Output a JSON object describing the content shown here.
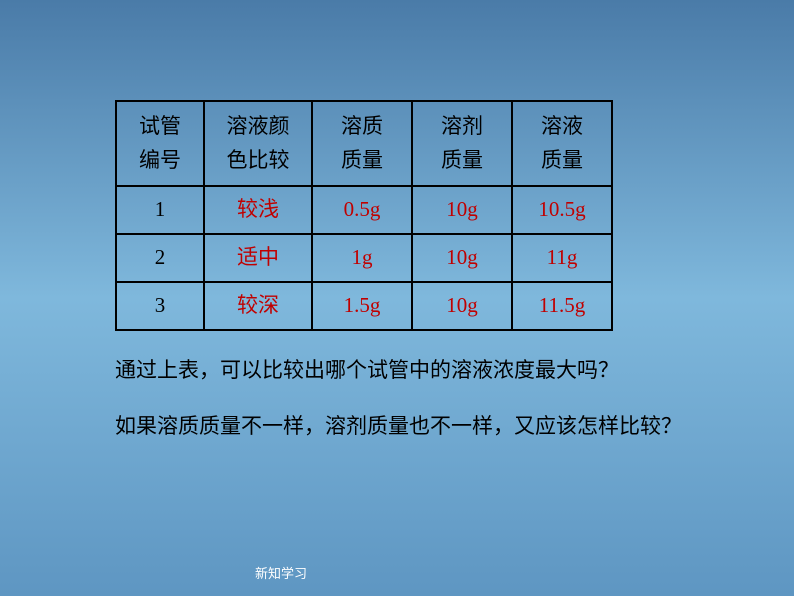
{
  "table": {
    "headers": {
      "col1_line1": "试管",
      "col1_line2": "编号",
      "col2_line1": "溶液颜",
      "col2_line2": "色比较",
      "col3_line1": "溶质",
      "col3_line2": "质量",
      "col4_line1": "溶剂",
      "col4_line2": "质量",
      "col5_line1": "溶液",
      "col5_line2": "质量"
    },
    "rows": [
      {
        "num": "1",
        "color": "较浅",
        "solute": "0.5g",
        "solvent": "10g",
        "solution": "10.5g"
      },
      {
        "num": "2",
        "color": "适中",
        "solute": "1g",
        "solvent": "10g",
        "solution": "11g"
      },
      {
        "num": "3",
        "color": "较深",
        "solute": "1.5g",
        "solvent": "10g",
        "solution": "11.5g"
      }
    ],
    "colors": {
      "border": "#000000",
      "header_text": "#000000",
      "data_text": "#c00000",
      "num_text": "#000000"
    }
  },
  "questions": {
    "q1": "通过上表，可以比较出哪个试管中的溶液浓度最大吗？",
    "q2": "如果溶质质量不一样，溶剂质量也不一样，又应该怎样比较？"
  },
  "footer": "新知学习",
  "background_gradient": [
    "#4a7ba8",
    "#7fb8dc",
    "#5e96c2"
  ]
}
